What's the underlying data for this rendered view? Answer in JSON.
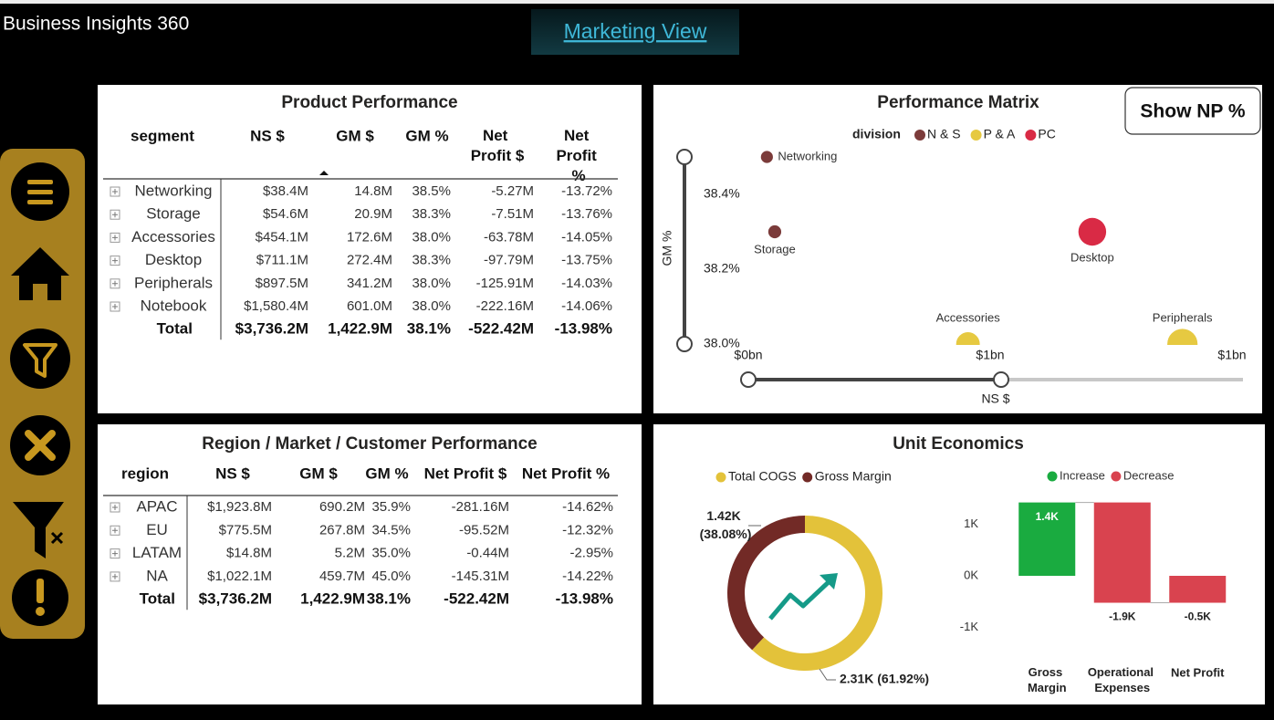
{
  "header": {
    "title": "Business Insights 360",
    "nav_button": "Marketing View"
  },
  "product_table": {
    "title": "Product Performance",
    "columns": [
      "segment",
      "NS $",
      "GM $",
      "GM %",
      "Net Profit $",
      "Net Profit %"
    ],
    "rows": [
      [
        "Networking",
        "$38.4M",
        "14.8M",
        "38.5%",
        "-5.27M",
        "-13.72%"
      ],
      [
        "Storage",
        "$54.6M",
        "20.9M",
        "38.3%",
        "-7.51M",
        "-13.76%"
      ],
      [
        "Accessories",
        "$454.1M",
        "172.6M",
        "38.0%",
        "-63.78M",
        "-14.05%"
      ],
      [
        "Desktop",
        "$711.1M",
        "272.4M",
        "38.3%",
        "-97.79M",
        "-13.75%"
      ],
      [
        "Peripherals",
        "$897.5M",
        "341.2M",
        "38.0%",
        "-125.91M",
        "-14.03%"
      ],
      [
        "Notebook",
        "$1,580.4M",
        "601.0M",
        "38.0%",
        "-222.16M",
        "-14.06%"
      ]
    ],
    "total": [
      "Total",
      "$3,736.2M",
      "1,422.9M",
      "38.1%",
      "-522.42M",
      "-13.98%"
    ]
  },
  "region_table": {
    "title": "Region / Market / Customer Performance",
    "columns": [
      "region",
      "NS $",
      "GM $",
      "GM %",
      "Net Profit $",
      "Net Profit %"
    ],
    "rows": [
      [
        "APAC",
        "$1,923.8M",
        "690.2M",
        "35.9%",
        "-281.16M",
        "-14.62%"
      ],
      [
        "EU",
        "$775.5M",
        "267.8M",
        "34.5%",
        "-95.52M",
        "-12.32%"
      ],
      [
        "LATAM",
        "$14.8M",
        "5.2M",
        "35.0%",
        "-0.44M",
        "-2.95%"
      ],
      [
        "NA",
        "$1,022.1M",
        "459.7M",
        "45.0%",
        "-145.31M",
        "-14.22%"
      ]
    ],
    "total": [
      "Total",
      "$3,736.2M",
      "1,422.9M",
      "38.1%",
      "-522.42M",
      "-13.98%"
    ]
  },
  "chart_data": [
    {
      "type": "scatter",
      "title": "Performance Matrix",
      "button": "Show NP %",
      "legend_title": "division",
      "x_label": "NS $",
      "y_label": "GM %",
      "xlim": [
        0,
        1000
      ],
      "xticks": [
        {
          "value": 0,
          "label": "$0bn"
        },
        {
          "value": 500,
          "label": "$1bn"
        },
        {
          "value": 1000,
          "label": "$1bn"
        }
      ],
      "ylim": [
        38.0,
        38.5
      ],
      "yticks": [
        {
          "value": 38.0,
          "label": "38.0%"
        },
        {
          "value": 38.2,
          "label": "38.2%"
        },
        {
          "value": 38.4,
          "label": "38.4%"
        }
      ],
      "series": [
        {
          "name": "N & S",
          "color": "#7b3b3a",
          "labels": [
            "Networking",
            "Storage"
          ],
          "x": [
            38.4,
            54.6
          ],
          "values": [
            38.5,
            38.3
          ]
        },
        {
          "name": "P & A",
          "color": "#e6c941",
          "labels": [
            "Accessories",
            "Peripherals"
          ],
          "x": [
            454.1,
            897.5
          ],
          "values": [
            38.0,
            38.0
          ]
        },
        {
          "name": "PC",
          "color": "#d92a45",
          "labels": [
            "Desktop"
          ],
          "x": [
            711.1
          ],
          "values": [
            38.3
          ]
        }
      ]
    },
    {
      "type": "donut",
      "title": "Unit Economics",
      "categories": [
        "Total COGS",
        "Gross Margin"
      ],
      "colors": [
        "#e3c23a",
        "#722a26"
      ],
      "values": [
        2313.3,
        1422.9
      ],
      "value_labels": [
        "2.31K (61.92%)",
        "1.42K (38.08%)"
      ]
    },
    {
      "type": "waterfall",
      "legend": [
        {
          "name": "Increase",
          "color": "#1aab40"
        },
        {
          "name": "Decrease",
          "color": "#d9434f"
        }
      ],
      "categories": [
        "Gross Margin",
        "Operational Expenses",
        "Net Profit"
      ],
      "values": [
        1422.9,
        -1945.3,
        -522.4
      ],
      "value_labels": [
        "1.4K",
        "-1.9K",
        "-0.5K"
      ],
      "ylim": [
        -1600,
        1500
      ],
      "yticks": [
        {
          "value": 1000,
          "label": "1K"
        },
        {
          "value": 0,
          "label": "0K"
        },
        {
          "value": -1000,
          "label": "-1K"
        }
      ]
    }
  ]
}
